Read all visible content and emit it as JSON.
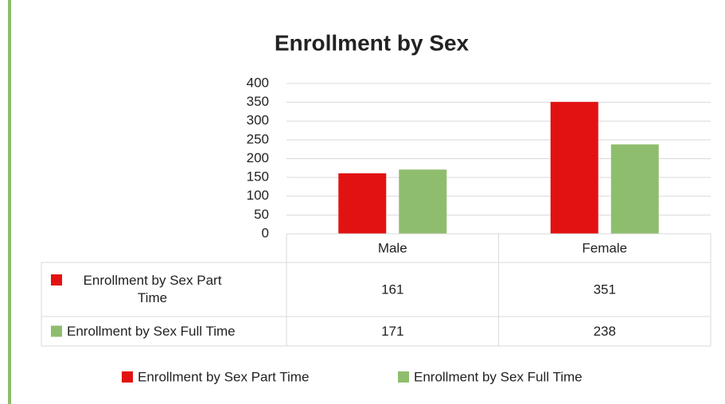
{
  "chart_data": {
    "type": "bar",
    "title": "Enrollment by Sex",
    "categories": [
      "Male",
      "Female"
    ],
    "series": [
      {
        "name": "Enrollment by Sex Part Time",
        "color": "#e31212",
        "values": [
          161,
          351
        ]
      },
      {
        "name": "Enrollment by Sex Full Time",
        "color": "#8fbd6e",
        "values": [
          171,
          238
        ]
      }
    ],
    "ylim": [
      0,
      400
    ],
    "yticks": [
      0,
      50,
      100,
      150,
      200,
      250,
      300,
      350,
      400
    ],
    "grid": true,
    "data_table": true,
    "legend": "bottom"
  }
}
